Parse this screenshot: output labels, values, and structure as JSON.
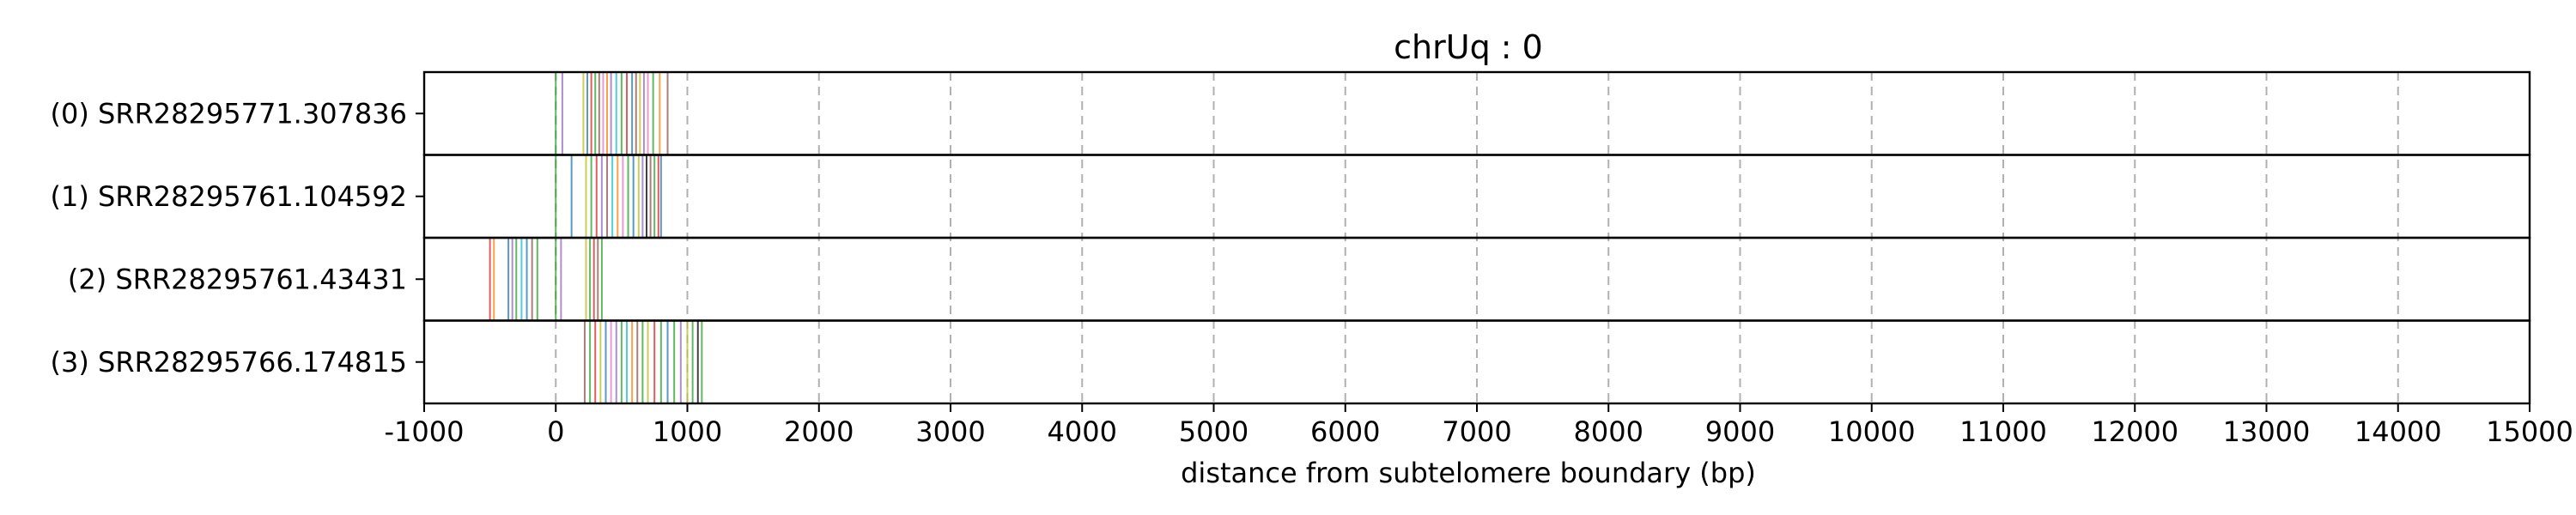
{
  "chart_data": {
    "type": "strip",
    "title": "chrUq : 0",
    "xlabel": "distance from subtelomere boundary (bp)",
    "xlim": [
      -1000,
      15000
    ],
    "xticks": [
      -1000,
      0,
      1000,
      2000,
      3000,
      4000,
      5000,
      6000,
      7000,
      8000,
      9000,
      10000,
      11000,
      12000,
      13000,
      14000,
      15000
    ],
    "grid": "vertical dashed at x ticks",
    "rows": [
      {
        "label": "(0) SRR28295771.307836",
        "marks": [
          {
            "x": 0,
            "color": "#2ca02c"
          },
          {
            "x": 50,
            "color": "#9467bd"
          },
          {
            "x": 210,
            "color": "#bcbd22"
          },
          {
            "x": 240,
            "color": "#1f77b4"
          },
          {
            "x": 270,
            "color": "#d62728"
          },
          {
            "x": 300,
            "color": "#2ca02c"
          },
          {
            "x": 330,
            "color": "#8c564b"
          },
          {
            "x": 360,
            "color": "#e377c2"
          },
          {
            "x": 390,
            "color": "#ff7f0e"
          },
          {
            "x": 420,
            "color": "#9467bd"
          },
          {
            "x": 460,
            "color": "#17becf"
          },
          {
            "x": 500,
            "color": "#2ca02c"
          },
          {
            "x": 540,
            "color": "#d62728"
          },
          {
            "x": 580,
            "color": "#1f77b4"
          },
          {
            "x": 610,
            "color": "#8c564b"
          },
          {
            "x": 640,
            "color": "#bcbd22"
          },
          {
            "x": 670,
            "color": "#9467bd"
          },
          {
            "x": 700,
            "color": "#e377c2"
          },
          {
            "x": 740,
            "color": "#2ca02c"
          },
          {
            "x": 790,
            "color": "#ff7f0e"
          },
          {
            "x": 850,
            "color": "#8c564b"
          }
        ]
      },
      {
        "label": "(1) SRR28295761.104592",
        "marks": [
          {
            "x": 0,
            "color": "#2ca02c"
          },
          {
            "x": 120,
            "color": "#1f77b4"
          },
          {
            "x": 230,
            "color": "#bcbd22"
          },
          {
            "x": 270,
            "color": "#2ca02c"
          },
          {
            "x": 310,
            "color": "#d62728"
          },
          {
            "x": 350,
            "color": "#9467bd"
          },
          {
            "x": 390,
            "color": "#8c564b"
          },
          {
            "x": 430,
            "color": "#17becf"
          },
          {
            "x": 470,
            "color": "#ff7f0e"
          },
          {
            "x": 510,
            "color": "#e377c2"
          },
          {
            "x": 550,
            "color": "#2ca02c"
          },
          {
            "x": 590,
            "color": "#1f77b4"
          },
          {
            "x": 630,
            "color": "#bcbd22"
          },
          {
            "x": 660,
            "color": "#9467bd"
          },
          {
            "x": 690,
            "color": "#000000"
          },
          {
            "x": 720,
            "color": "#8c564b"
          },
          {
            "x": 750,
            "color": "#2ca02c"
          },
          {
            "x": 780,
            "color": "#d62728"
          },
          {
            "x": 800,
            "color": "#1f77b4"
          }
        ]
      },
      {
        "label": "(2) SRR28295761.43431",
        "marks": [
          {
            "x": -500,
            "color": "#d62728"
          },
          {
            "x": -470,
            "color": "#ff7f0e"
          },
          {
            "x": -360,
            "color": "#1f77b4"
          },
          {
            "x": -330,
            "color": "#9467bd"
          },
          {
            "x": -300,
            "color": "#2ca02c"
          },
          {
            "x": -260,
            "color": "#17becf"
          },
          {
            "x": -220,
            "color": "#1f77b4"
          },
          {
            "x": -180,
            "color": "#8c564b"
          },
          {
            "x": -140,
            "color": "#2ca02c"
          },
          {
            "x": 0,
            "color": "#2ca02c"
          },
          {
            "x": 40,
            "color": "#9467bd"
          },
          {
            "x": 230,
            "color": "#bcbd22"
          },
          {
            "x": 260,
            "color": "#2ca02c"
          },
          {
            "x": 290,
            "color": "#d62728"
          },
          {
            "x": 320,
            "color": "#8c564b"
          },
          {
            "x": 350,
            "color": "#2ca02c"
          }
        ]
      },
      {
        "label": "(3) SRR28295766.174815",
        "marks": [
          {
            "x": 220,
            "color": "#8c564b"
          },
          {
            "x": 260,
            "color": "#2ca02c"
          },
          {
            "x": 300,
            "color": "#d62728"
          },
          {
            "x": 340,
            "color": "#bcbd22"
          },
          {
            "x": 380,
            "color": "#1f77b4"
          },
          {
            "x": 420,
            "color": "#e377c2"
          },
          {
            "x": 460,
            "color": "#9467bd"
          },
          {
            "x": 500,
            "color": "#2ca02c"
          },
          {
            "x": 540,
            "color": "#17becf"
          },
          {
            "x": 580,
            "color": "#ff7f0e"
          },
          {
            "x": 620,
            "color": "#8c564b"
          },
          {
            "x": 660,
            "color": "#2ca02c"
          },
          {
            "x": 700,
            "color": "#bcbd22"
          },
          {
            "x": 750,
            "color": "#d62728"
          },
          {
            "x": 800,
            "color": "#2ca02c"
          },
          {
            "x": 850,
            "color": "#1f77b4"
          },
          {
            "x": 900,
            "color": "#2ca02c"
          },
          {
            "x": 950,
            "color": "#9467bd"
          },
          {
            "x": 1000,
            "color": "#bcbd22"
          },
          {
            "x": 1040,
            "color": "#2ca02c"
          },
          {
            "x": 1080,
            "color": "#000000"
          },
          {
            "x": 1110,
            "color": "#2ca02c"
          }
        ]
      }
    ]
  }
}
